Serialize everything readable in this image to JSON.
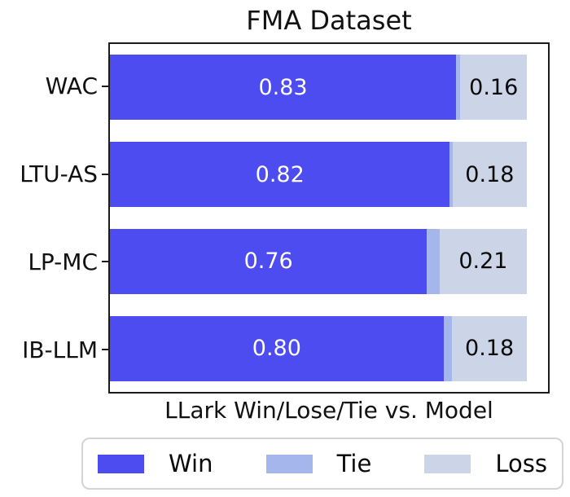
{
  "chart_data": {
    "type": "bar",
    "orientation": "horizontal-stacked",
    "title": "FMA Dataset",
    "xlabel": "LLark Win/Lose/Tie vs. Model",
    "ylabel": "",
    "categories": [
      "WAC",
      "LTU-AS",
      "LP-MC",
      "IB-LLM"
    ],
    "series": [
      {
        "name": "Win",
        "color": "#4c4cf0",
        "values": [
          0.83,
          0.82,
          0.76,
          0.8
        ]
      },
      {
        "name": "Tie",
        "color": "#a4b6ec",
        "values": [
          0.01,
          0.0,
          0.03,
          0.02
        ]
      },
      {
        "name": "Loss",
        "color": "#ccd5e8",
        "values": [
          0.16,
          0.18,
          0.21,
          0.18
        ]
      }
    ],
    "bar_value_labels": {
      "win": [
        "0.83",
        "0.82",
        "0.76",
        "0.80"
      ],
      "loss": [
        "0.16",
        "0.18",
        "0.21",
        "0.18"
      ]
    },
    "xlim": [
      0,
      1.05
    ],
    "grid": false,
    "legend": {
      "position": "bottom",
      "entries": [
        "Win",
        "Tie",
        "Loss"
      ]
    }
  }
}
